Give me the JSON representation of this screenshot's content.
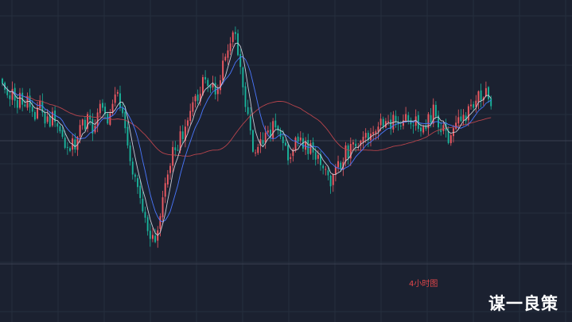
{
  "chart_data": {
    "type": "candlestick",
    "timeframe_label": "4小时图",
    "watermark": "谋一良策",
    "colors": {
      "background": "#1b2130",
      "grid": "#262e3e",
      "up": "#ef5a62",
      "down": "#19b39b",
      "ma_fast": "#c8ccd6",
      "ma_mid": "#4a78ff",
      "ma_slow": "#b8444c",
      "level_line": "#3a4050"
    },
    "grid": true,
    "closes": [
      236,
      228,
      221,
      216,
      229,
      214,
      205,
      224,
      209,
      207,
      220,
      206,
      200,
      190,
      205,
      214,
      199,
      185,
      194,
      181,
      200,
      187,
      181,
      175,
      168,
      154,
      155,
      150,
      166,
      152,
      168,
      183,
      190,
      178,
      197,
      190,
      172,
      182,
      199,
      210,
      205,
      197,
      185,
      198,
      210,
      222,
      225,
      205,
      198,
      179,
      157,
      137,
      120,
      117,
      104,
      90,
      73,
      65,
      48,
      38,
      43,
      34,
      49,
      67,
      91,
      109,
      120,
      131,
      155,
      151,
      151,
      175,
      165,
      181,
      189,
      201,
      212,
      220,
      214,
      223,
      244,
      241,
      233,
      230,
      236,
      222,
      229,
      240,
      265,
      270,
      278,
      287,
      301,
      299,
      272,
      257,
      231,
      206,
      197,
      176,
      149,
      148,
      155,
      165,
      159,
      173,
      176,
      168,
      188,
      180,
      176,
      168,
      160,
      157,
      138,
      142,
      152,
      167,
      162,
      167,
      153,
      162,
      146,
      160,
      148,
      139,
      145,
      132,
      128,
      127,
      119,
      105,
      120,
      130,
      137,
      128,
      136,
      157,
      141,
      159,
      161,
      156,
      155,
      163,
      168,
      173,
      164,
      172,
      174,
      175,
      181,
      191,
      181,
      188,
      188,
      178,
      196,
      187,
      184,
      182,
      189,
      197,
      188,
      184,
      182,
      194,
      178,
      175,
      181,
      178,
      197,
      186,
      209,
      194,
      180,
      174,
      183,
      176,
      160,
      170,
      179,
      186,
      193,
      188,
      196,
      188,
      207,
      209,
      205,
      214,
      226,
      214,
      218,
      230,
      216,
      207
    ],
    "level_line_price": 163,
    "y_range": [
      0,
      322
    ]
  }
}
